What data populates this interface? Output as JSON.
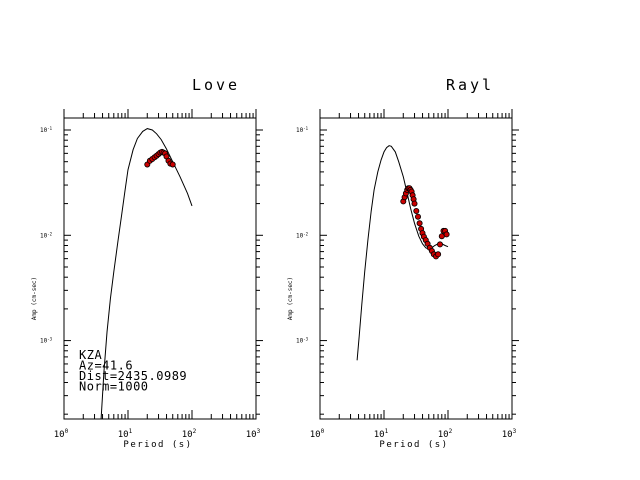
{
  "chart_data": [
    {
      "type": "scatter",
      "title": "Love",
      "xlabel": "Period (s)",
      "ylabel": "Amp (cm-sec)",
      "x_scale": "log",
      "y_scale": "log",
      "xlim": [
        1,
        1000
      ],
      "ylim": [
        0.00018,
        0.13
      ],
      "x_tick_labels": [
        {
          "value": 1,
          "base": "10",
          "exp": "0"
        },
        {
          "value": 10,
          "base": "10",
          "exp": "1"
        },
        {
          "value": 100,
          "base": "10",
          "exp": "2"
        },
        {
          "value": 1000,
          "base": "10",
          "exp": "3"
        }
      ],
      "y_tick_labels": [
        {
          "value": 0.1,
          "base": "10",
          "exp": "-1"
        },
        {
          "value": 0.01,
          "base": "10",
          "exp": "-2"
        },
        {
          "value": 0.001,
          "base": "10",
          "exp": "-3"
        }
      ],
      "series": [
        {
          "kind": "line",
          "x": [
            3.8,
            4.2,
            4.7,
            5.3,
            6.0,
            7.0,
            8.0,
            9.0,
            10,
            12,
            14,
            17,
            20,
            24,
            28,
            33,
            40,
            50,
            65,
            85,
            100
          ],
          "y": [
            0.00018,
            0.0005,
            0.0012,
            0.0025,
            0.0045,
            0.009,
            0.016,
            0.027,
            0.042,
            0.065,
            0.083,
            0.097,
            0.103,
            0.1,
            0.092,
            0.081,
            0.066,
            0.05,
            0.036,
            0.025,
            0.019
          ]
        },
        {
          "kind": "points",
          "x": [
            20,
            22,
            24,
            26,
            28,
            30,
            32,
            34,
            36,
            38,
            40,
            43,
            46,
            50
          ],
          "y": [
            0.047,
            0.051,
            0.053,
            0.055,
            0.057,
            0.059,
            0.061,
            0.062,
            0.061,
            0.06,
            0.056,
            0.051,
            0.048,
            0.047
          ]
        }
      ],
      "annotations": [
        "KZA",
        "Az=41.6",
        "Dist=2435.0989",
        "Norm=1000"
      ]
    },
    {
      "type": "scatter",
      "title": "Rayl",
      "xlabel": "Period (s)",
      "ylabel": "Amp (cm-sec)",
      "x_scale": "log",
      "y_scale": "log",
      "xlim": [
        1,
        1000
      ],
      "ylim": [
        0.00018,
        0.13
      ],
      "x_tick_labels": [
        {
          "value": 1,
          "base": "10",
          "exp": "0"
        },
        {
          "value": 10,
          "base": "10",
          "exp": "1"
        },
        {
          "value": 100,
          "base": "10",
          "exp": "2"
        },
        {
          "value": 1000,
          "base": "10",
          "exp": "3"
        }
      ],
      "y_tick_labels": [
        {
          "value": 0.1,
          "base": "10",
          "exp": "-1"
        },
        {
          "value": 0.01,
          "base": "10",
          "exp": "-2"
        },
        {
          "value": 0.001,
          "base": "10",
          "exp": "-3"
        }
      ],
      "series": [
        {
          "kind": "line",
          "x": [
            3.8,
            4.1,
            4.5,
            5.0,
            5.6,
            6.3,
            7.0,
            8.0,
            9.0,
            10,
            11,
            12,
            13,
            15,
            17,
            20,
            23,
            26,
            30,
            35,
            40,
            45,
            50,
            56,
            62,
            70,
            80,
            90,
            100
          ],
          "y": [
            0.00065,
            0.0011,
            0.0022,
            0.0045,
            0.009,
            0.017,
            0.027,
            0.04,
            0.052,
            0.062,
            0.068,
            0.071,
            0.07,
            0.062,
            0.05,
            0.036,
            0.025,
            0.018,
            0.013,
            0.0098,
            0.0083,
            0.0076,
            0.0074,
            0.0076,
            0.008,
            0.0083,
            0.0083,
            0.008,
            0.0078
          ]
        },
        {
          "kind": "points",
          "x": [
            20,
            21,
            22,
            23,
            24,
            25,
            26,
            27,
            28,
            29,
            30,
            32,
            34,
            36,
            38,
            40,
            42,
            45,
            48,
            52,
            56,
            60,
            65,
            70,
            75,
            80,
            85,
            90,
            95
          ],
          "y": [
            0.021,
            0.023,
            0.025,
            0.027,
            0.028,
            0.028,
            0.027,
            0.026,
            0.024,
            0.022,
            0.02,
            0.017,
            0.015,
            0.013,
            0.0115,
            0.0105,
            0.0097,
            0.009,
            0.0083,
            0.0076,
            0.0071,
            0.0066,
            0.0063,
            0.0066,
            0.0082,
            0.0098,
            0.011,
            0.011,
            0.0102
          ]
        }
      ],
      "annotations": []
    }
  ]
}
